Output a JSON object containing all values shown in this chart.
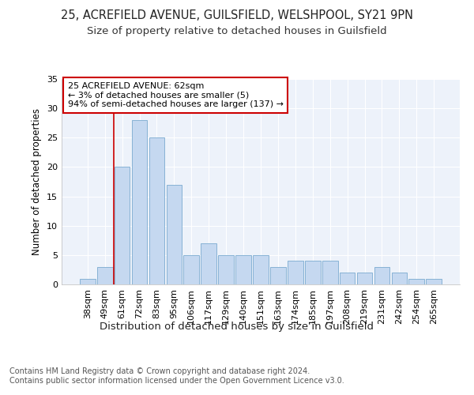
{
  "title1": "25, ACREFIELD AVENUE, GUILSFIELD, WELSHPOOL, SY21 9PN",
  "title2": "Size of property relative to detached houses in Guilsfield",
  "xlabel": "Distribution of detached houses by size in Guilsfield",
  "ylabel": "Number of detached properties",
  "categories": [
    "38sqm",
    "49sqm",
    "61sqm",
    "72sqm",
    "83sqm",
    "95sqm",
    "106sqm",
    "117sqm",
    "129sqm",
    "140sqm",
    "151sqm",
    "163sqm",
    "174sqm",
    "185sqm",
    "197sqm",
    "208sqm",
    "219sqm",
    "231sqm",
    "242sqm",
    "254sqm",
    "265sqm"
  ],
  "values": [
    1,
    3,
    20,
    28,
    25,
    17,
    5,
    7,
    5,
    5,
    5,
    3,
    4,
    4,
    4,
    2,
    2,
    3,
    2,
    1,
    1
  ],
  "bar_color": "#c5d8f0",
  "bar_edge_color": "#7aaad0",
  "vline_index": 2,
  "vline_color": "#cc0000",
  "annotation_line1": "25 ACREFIELD AVENUE: 62sqm",
  "annotation_line2": "← 3% of detached houses are smaller (5)",
  "annotation_line3": "94% of semi-detached houses are larger (137) →",
  "annotation_box_facecolor": "#ffffff",
  "annotation_box_edgecolor": "#cc0000",
  "ylim": [
    0,
    35
  ],
  "yticks": [
    0,
    5,
    10,
    15,
    20,
    25,
    30,
    35
  ],
  "footnote": "Contains HM Land Registry data © Crown copyright and database right 2024.\nContains public sector information licensed under the Open Government Licence v3.0.",
  "bg_color": "#edf2fa",
  "grid_color": "#ffffff",
  "title1_fontsize": 10.5,
  "title2_fontsize": 9.5,
  "ylabel_fontsize": 8.5,
  "xlabel_fontsize": 9.5,
  "tick_fontsize": 8,
  "ann_fontsize": 8,
  "footnote_fontsize": 7
}
